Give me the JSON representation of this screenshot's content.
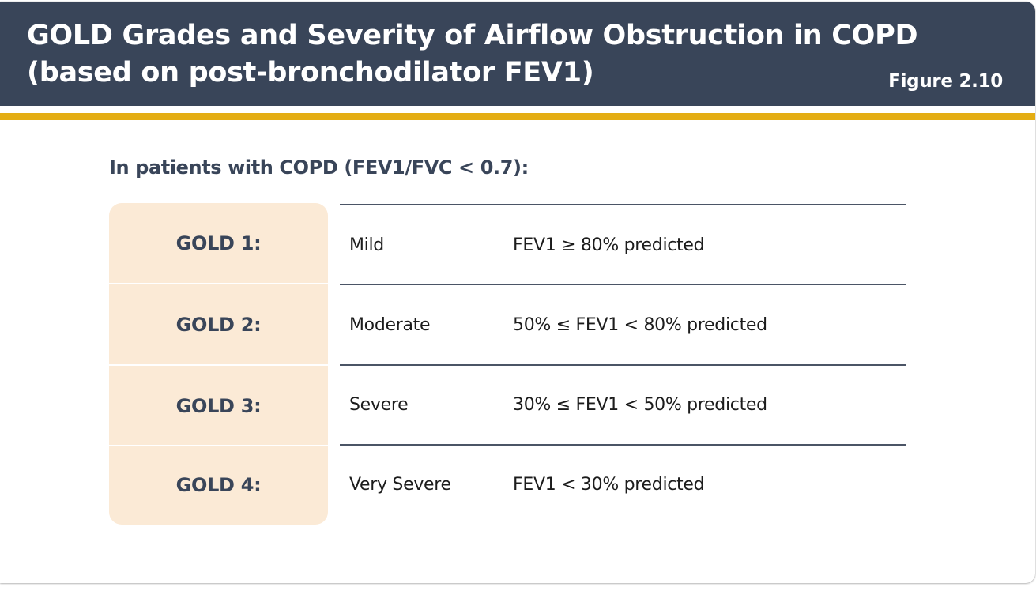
{
  "header": {
    "title_line1": "GOLD Grades and Severity of Airflow Obstruction in COPD",
    "title_line2": "(based on post-bronchodilator FEV1)",
    "figure_label": "Figure 2.10"
  },
  "subtitle": "In patients with COPD (FEV1/FVC < 0.7):",
  "colors": {
    "header_bg": "#394559",
    "accent_bar": "#e4ad13",
    "grade_column_bg": "#fbead6",
    "text_dark": "#394559"
  },
  "rows": [
    {
      "grade": "GOLD 1:",
      "severity": "Mild",
      "criteria": "FEV1 ≥ 80% predicted"
    },
    {
      "grade": "GOLD 2:",
      "severity": "Moderate",
      "criteria": "50% ≤ FEV1 < 80% predicted"
    },
    {
      "grade": "GOLD 3:",
      "severity": "Severe",
      "criteria": "30% ≤ FEV1 < 50% predicted"
    },
    {
      "grade": "GOLD 4:",
      "severity": "Very Severe",
      "criteria": "FEV1 < 30% predicted"
    }
  ]
}
